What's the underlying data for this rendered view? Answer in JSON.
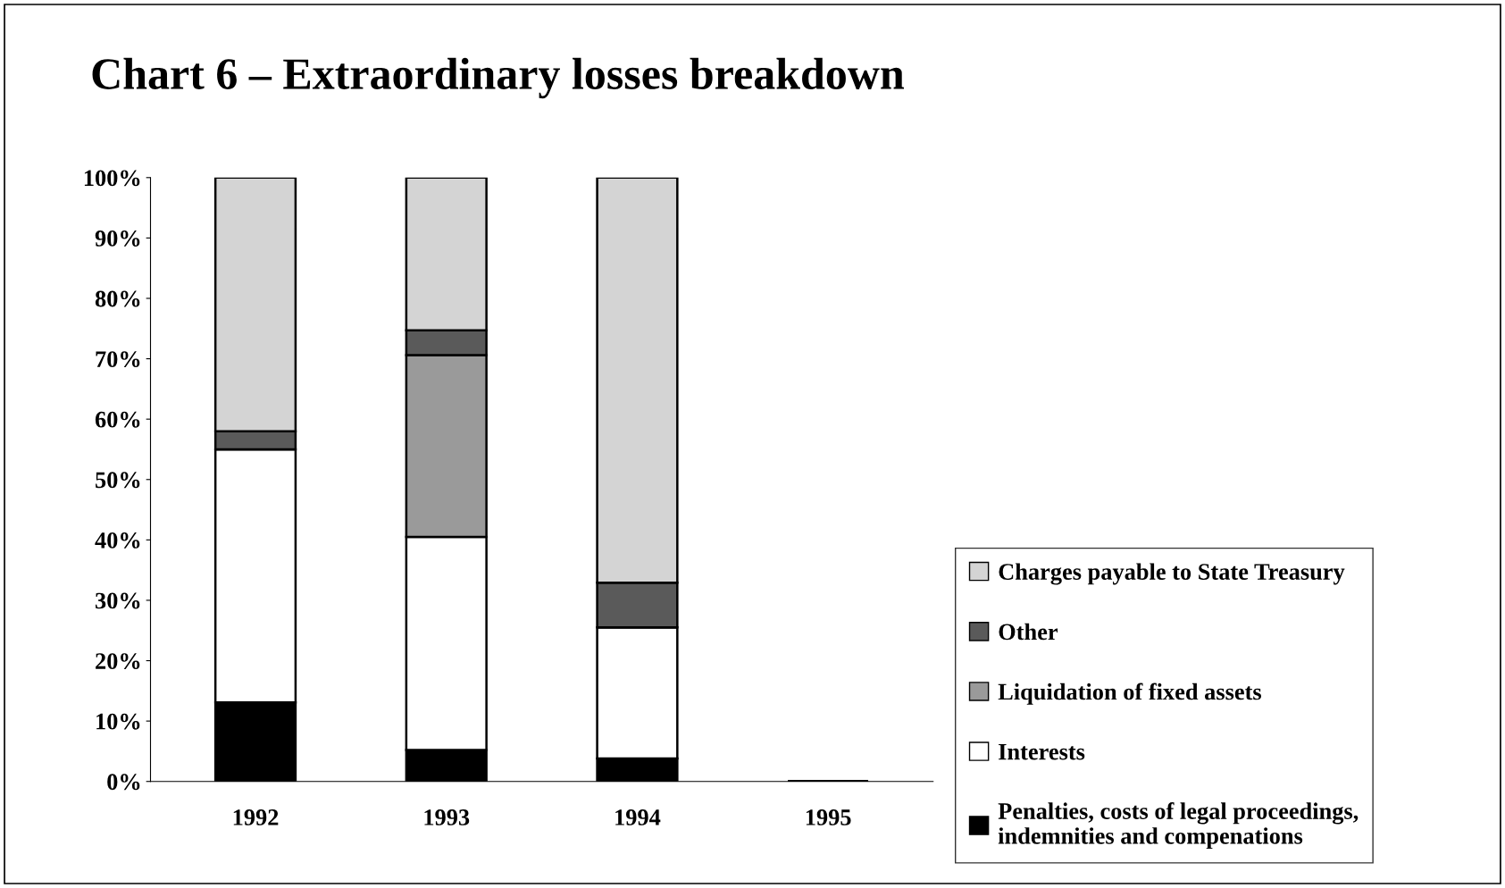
{
  "chart_data": {
    "type": "bar",
    "title": "Chart 6 – Extraordinary losses breakdown",
    "stacked": true,
    "categories": [
      "1992",
      "1993",
      "1994",
      "1995"
    ],
    "series": [
      {
        "name": "Penalties, costs of legal proceedings,\nindemnities and compenations",
        "color": "#000000",
        "values": [
          13.1,
          5.2,
          3.8,
          null
        ]
      },
      {
        "name": "Interests",
        "color": "#ffffff",
        "values": [
          41.9,
          35.3,
          21.7,
          null
        ]
      },
      {
        "name": "Liquidation of fixed assets",
        "color": "#9a9a9a",
        "values": [
          0,
          30.1,
          0,
          null
        ]
      },
      {
        "name": "Other",
        "color": "#5a5a5a",
        "values": [
          3.0,
          4.1,
          7.4,
          null
        ]
      },
      {
        "name": "Charges payable to State Treasury",
        "color": "#d4d4d4",
        "values": [
          42.0,
          25.3,
          67.1,
          null
        ]
      }
    ],
    "ylim": [
      0,
      100
    ],
    "yticks": [
      {
        "value": 0,
        "label": "0%"
      },
      {
        "value": 10,
        "label": "10%"
      },
      {
        "value": 20,
        "label": "20%"
      },
      {
        "value": 30,
        "label": "30%"
      },
      {
        "value": 40,
        "label": "40%"
      },
      {
        "value": 50,
        "label": "50%"
      },
      {
        "value": 60,
        "label": "60%"
      },
      {
        "value": 70,
        "label": "70%"
      },
      {
        "value": 80,
        "label": "80%"
      },
      {
        "value": 90,
        "label": "90%"
      },
      {
        "value": 100,
        "label": "100%"
      }
    ],
    "grid": false,
    "legend": "right"
  }
}
